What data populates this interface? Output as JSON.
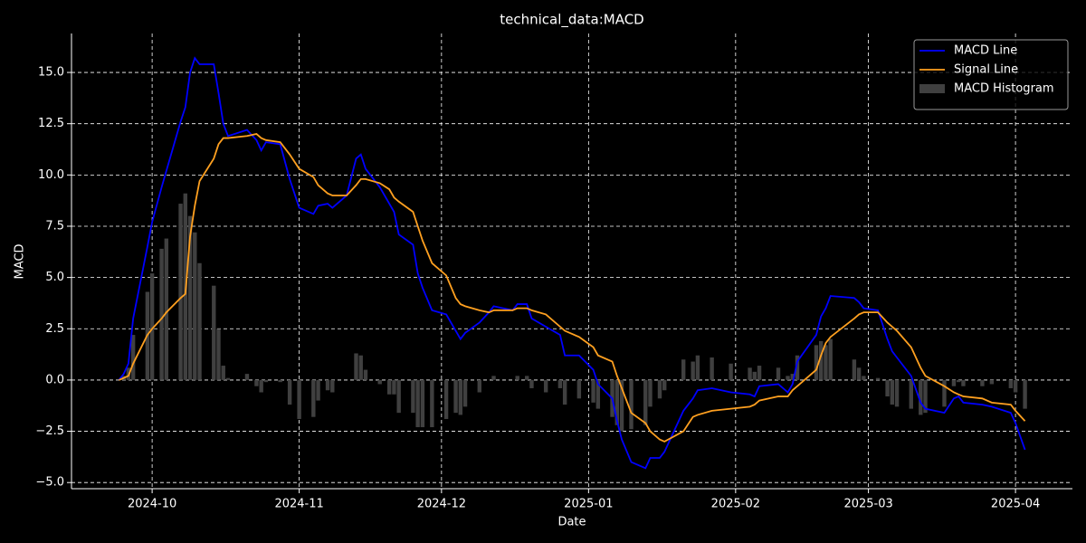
{
  "chart_data": {
    "type": "line",
    "title": "technical_data:MACD",
    "xlabel": "Date",
    "ylabel": "MACD",
    "x": [
      "2024-09-24",
      "2024-09-25",
      "2024-09-26",
      "2024-09-27",
      "2024-09-30",
      "2024-10-01",
      "2024-10-03",
      "2024-10-04",
      "2024-10-07",
      "2024-10-08",
      "2024-10-09",
      "2024-10-10",
      "2024-10-11",
      "2024-10-14",
      "2024-10-15",
      "2024-10-16",
      "2024-10-17",
      "2024-10-21",
      "2024-10-23",
      "2024-10-24",
      "2024-10-25",
      "2024-10-28",
      "2024-10-30",
      "2024-11-01",
      "2024-11-04",
      "2024-11-05",
      "2024-11-07",
      "2024-11-08",
      "2024-11-11",
      "2024-11-13",
      "2024-11-14",
      "2024-11-15",
      "2024-11-18",
      "2024-11-20",
      "2024-11-21",
      "2024-11-22",
      "2024-11-25",
      "2024-11-26",
      "2024-11-27",
      "2024-11-29",
      "2024-12-02",
      "2024-12-04",
      "2024-12-05",
      "2024-12-06",
      "2024-12-09",
      "2024-12-11",
      "2024-12-12",
      "2024-12-16",
      "2024-12-17",
      "2024-12-19",
      "2024-12-20",
      "2024-12-23",
      "2024-12-26",
      "2024-12-27",
      "2024-12-30",
      "2025-01-02",
      "2025-01-03",
      "2025-01-06",
      "2025-01-07",
      "2025-01-08",
      "2025-01-10",
      "2025-01-13",
      "2025-01-14",
      "2025-01-16",
      "2025-01-17",
      "2025-01-21",
      "2025-01-23",
      "2025-01-24",
      "2025-01-27",
      "2025-01-31",
      "2025-02-04",
      "2025-02-05",
      "2025-02-06",
      "2025-02-10",
      "2025-02-12",
      "2025-02-13",
      "2025-02-14",
      "2025-02-18",
      "2025-02-19",
      "2025-02-20",
      "2025-02-21",
      "2025-02-26",
      "2025-02-27",
      "2025-02-28",
      "2025-03-03",
      "2025-03-05",
      "2025-03-06",
      "2025-03-07",
      "2025-03-10",
      "2025-03-12",
      "2025-03-13",
      "2025-03-17",
      "2025-03-19",
      "2025-03-20",
      "2025-03-21",
      "2025-03-25",
      "2025-03-27",
      "2025-03-31",
      "2025-04-01",
      "2025-04-03"
    ],
    "series": [
      {
        "name": "MACD Line",
        "color": "#0000ff",
        "type": "line",
        "values": [
          0.0,
          0.3,
          0.8,
          3.0,
          6.5,
          7.7,
          9.4,
          10.2,
          12.6,
          13.3,
          15.0,
          15.7,
          15.4,
          15.4,
          14.0,
          12.5,
          11.9,
          12.2,
          11.7,
          11.2,
          11.6,
          11.5,
          9.8,
          8.4,
          8.1,
          8.5,
          8.6,
          8.4,
          9.0,
          10.8,
          11.0,
          10.3,
          9.4,
          8.6,
          8.2,
          7.1,
          6.6,
          5.2,
          4.5,
          3.4,
          3.2,
          2.4,
          2.0,
          2.3,
          2.8,
          3.3,
          3.6,
          3.4,
          3.7,
          3.7,
          3.0,
          2.6,
          2.2,
          1.2,
          1.2,
          0.5,
          -0.2,
          -0.9,
          -2.0,
          -2.9,
          -4.0,
          -4.3,
          -3.8,
          -3.8,
          -3.5,
          -1.5,
          -0.9,
          -0.5,
          -0.4,
          -0.6,
          -0.7,
          -0.8,
          -0.3,
          -0.2,
          -0.6,
          -0.2,
          0.9,
          2.2,
          3.1,
          3.5,
          4.1,
          4.0,
          3.8,
          3.5,
          3.4,
          2.0,
          1.4,
          1.1,
          0.2,
          -1.1,
          -1.4,
          -1.6,
          -0.9,
          -0.8,
          -1.1,
          -1.2,
          -1.3,
          -1.6,
          -2.1,
          -3.4
        ]
      },
      {
        "name": "Signal Line",
        "color": "#ffa020",
        "type": "line",
        "values": [
          0.0,
          0.1,
          0.2,
          0.8,
          2.2,
          2.5,
          3.0,
          3.3,
          4.0,
          4.2,
          7.0,
          8.5,
          9.7,
          10.8,
          11.5,
          11.8,
          11.8,
          11.9,
          12.0,
          11.8,
          11.7,
          11.6,
          11.0,
          10.3,
          9.9,
          9.5,
          9.1,
          9.0,
          9.0,
          9.5,
          9.8,
          9.8,
          9.6,
          9.3,
          8.9,
          8.7,
          8.2,
          7.5,
          6.8,
          5.7,
          5.1,
          4.0,
          3.7,
          3.6,
          3.4,
          3.3,
          3.4,
          3.4,
          3.5,
          3.5,
          3.4,
          3.2,
          2.6,
          2.4,
          2.1,
          1.6,
          1.2,
          0.9,
          0.2,
          -0.4,
          -1.6,
          -2.1,
          -2.5,
          -2.9,
          -3.0,
          -2.5,
          -1.8,
          -1.7,
          -1.5,
          -1.4,
          -1.3,
          -1.2,
          -1.0,
          -0.8,
          -0.8,
          -0.5,
          -0.3,
          0.5,
          1.2,
          1.8,
          2.1,
          3.0,
          3.2,
          3.3,
          3.3,
          2.8,
          2.6,
          2.4,
          1.6,
          0.6,
          0.2,
          -0.3,
          -0.6,
          -0.7,
          -0.8,
          -0.9,
          -1.1,
          -1.2,
          -1.5,
          -2.0
        ]
      },
      {
        "name": "MACD Histogram",
        "color": "#404040",
        "type": "bar",
        "values": [
          0.0,
          0.2,
          0.6,
          2.2,
          4.3,
          5.2,
          6.4,
          6.9,
          8.6,
          9.1,
          8.0,
          7.2,
          5.7,
          4.6,
          2.5,
          0.7,
          0.1,
          0.3,
          -0.3,
          -0.6,
          -0.1,
          -0.1,
          -1.2,
          -1.9,
          -1.8,
          -1.0,
          -0.5,
          -0.6,
          0.0,
          1.3,
          1.2,
          0.5,
          -0.2,
          -0.7,
          -0.7,
          -1.6,
          -1.6,
          -2.3,
          -2.3,
          -2.3,
          -1.9,
          -1.6,
          -1.7,
          -1.3,
          -0.6,
          0.0,
          0.2,
          0.0,
          0.2,
          0.2,
          -0.4,
          -0.6,
          -0.4,
          -1.2,
          -0.9,
          -1.1,
          -1.4,
          -1.8,
          -2.2,
          -2.5,
          -2.4,
          -2.2,
          -1.3,
          -0.9,
          -0.5,
          1.0,
          0.9,
          1.2,
          1.1,
          0.8,
          0.6,
          0.4,
          0.7,
          0.6,
          0.2,
          0.3,
          1.2,
          1.7,
          1.9,
          1.7,
          2.0,
          1.0,
          0.6,
          0.2,
          0.1,
          -0.8,
          -1.2,
          -1.3,
          -1.4,
          -1.7,
          -1.6,
          -1.3,
          -0.3,
          -0.1,
          -0.3,
          -0.3,
          -0.2,
          -0.4,
          -0.6,
          -1.4
        ]
      }
    ],
    "xlim": [
      "2024-09-14",
      "2025-04-13"
    ],
    "xticks": [
      {
        "value": "2024-10-01",
        "label": "2024-10"
      },
      {
        "value": "2024-11-01",
        "label": "2024-11"
      },
      {
        "value": "2024-12-01",
        "label": "2024-12"
      },
      {
        "value": "2025-01-01",
        "label": "2025-01"
      },
      {
        "value": "2025-02-01",
        "label": "2025-02"
      },
      {
        "value": "2025-03-01",
        "label": "2025-03"
      },
      {
        "value": "2025-04-01",
        "label": "2025-04"
      }
    ],
    "ylim": [
      -5.3,
      16.9
    ],
    "yticks": [
      {
        "value": -5,
        "label": "−5.0"
      },
      {
        "value": -2.5,
        "label": "−2.5"
      },
      {
        "value": 0,
        "label": "0.0"
      },
      {
        "value": 2.5,
        "label": "2.5"
      },
      {
        "value": 5,
        "label": "5.0"
      },
      {
        "value": 7.5,
        "label": "7.5"
      },
      {
        "value": 10,
        "label": "10.0"
      },
      {
        "value": 12.5,
        "label": "12.5"
      },
      {
        "value": 15,
        "label": "15.0"
      }
    ],
    "grid": true,
    "legend": "upper right"
  }
}
